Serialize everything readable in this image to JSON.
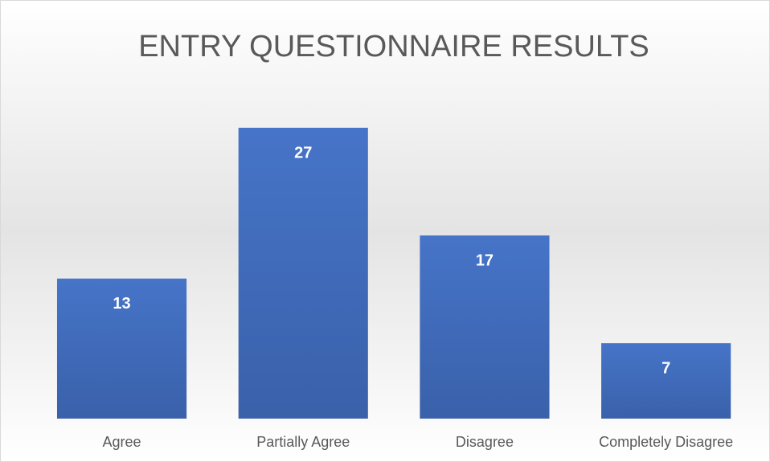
{
  "chart_data": {
    "type": "bar",
    "title": "ENTRY QUESTIONNAIRE RESULTS",
    "categories": [
      "Agree",
      "Partially Agree",
      "Disagree",
      "Completely Disagree"
    ],
    "values": [
      13,
      27,
      17,
      7
    ],
    "color": "#4472c4"
  }
}
